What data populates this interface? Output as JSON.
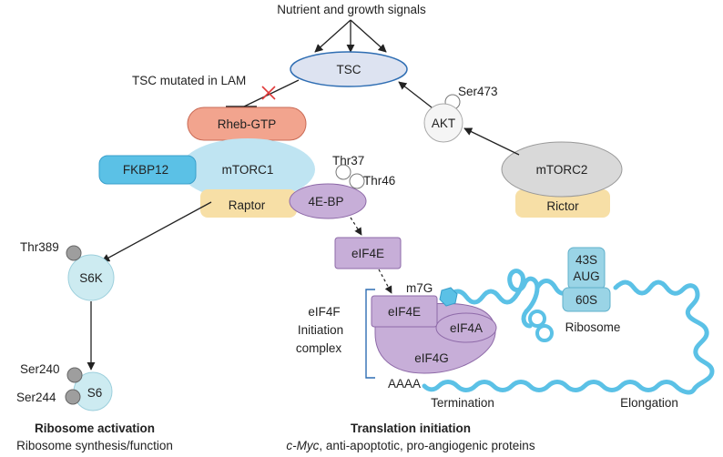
{
  "signals": {
    "label": "Nutrient and growth signals"
  },
  "tsc": {
    "label": "TSC",
    "mutation_note": "TSC mutated in LAM"
  },
  "akt": {
    "label": "AKT",
    "site": "Ser473"
  },
  "mtorc2": {
    "label": "mTORC2",
    "partner": "Rictor"
  },
  "mtorc1": {
    "label": "mTORC1",
    "rheb": "Rheb-GTP",
    "fkbp12": "FKBP12",
    "raptor": "Raptor"
  },
  "fourebp": {
    "label": "4E-BP",
    "sites": [
      "Thr37",
      "Thr46"
    ]
  },
  "eif4e_free": {
    "label": "eIF4E"
  },
  "s6k": {
    "label": "S6K",
    "site": "Thr389"
  },
  "s6": {
    "label": "S6",
    "sites": [
      "Ser240",
      "Ser244"
    ]
  },
  "eif4f": {
    "title_lines": [
      "eIF4F",
      "Initiation",
      "complex"
    ],
    "eif4e": "eIF4E",
    "eif4a": "eIF4A",
    "eif4g": "eIF4G",
    "cap": "m7G",
    "polya": "AAAA"
  },
  "ribosome": {
    "small": "43S",
    "start": "AUG",
    "large": "60S",
    "label": "Ribosome"
  },
  "mrna": {
    "termination": "Termination",
    "elongation": "Elongation"
  },
  "sections": {
    "left_title": "Ribosome activation",
    "left_subtitle": "Ribosome synthesis/function",
    "right_title": "Translation initiation",
    "right_subtitle_italic": "c-Myc",
    "right_subtitle_rest": ", anti-apoptotic, pro-angiogenic proteins"
  },
  "colors": {
    "tsc_fill": "#dde3f1",
    "tsc_stroke": "#2f6eb3",
    "rheb": "#f2a48e",
    "mtorc1": "#bfe4f2",
    "fkbp12": "#5bc1e6",
    "raptor": "#f7dfa6",
    "purple": "#c7aed8",
    "grey": "#d9d9d9",
    "s6": "#cdebf1",
    "mrna": "#5bc1e6",
    "ribosome": "#9ad4e6",
    "inhibit": "#e03a3a"
  }
}
